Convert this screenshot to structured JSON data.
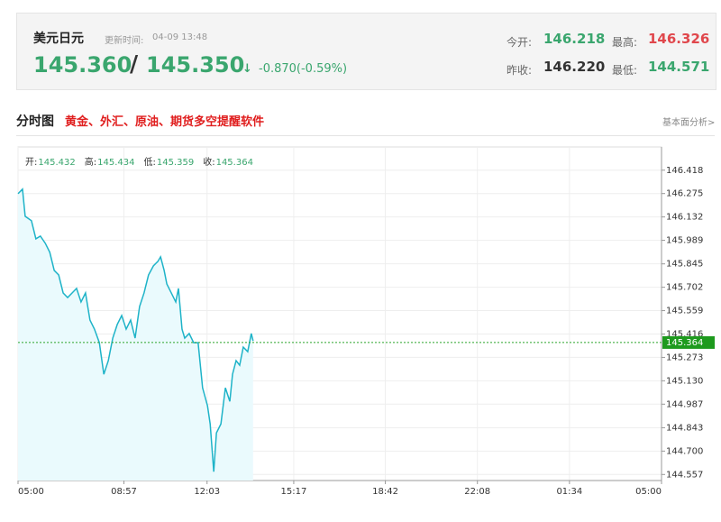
{
  "header": {
    "symbol": "美元日元",
    "update_label": "更新时间:",
    "update_time": "04-09 13:48",
    "bid": "145.360",
    "separator": "/",
    "ask": "145.350",
    "arrow": "↓",
    "change": "-0.870(-0.59%)",
    "stats": [
      {
        "label": "今开:",
        "value": "146.218"
      },
      {
        "label": "最高:",
        "value": "146.326"
      },
      {
        "label": "昨收:",
        "value": "146.220"
      },
      {
        "label": "最低:",
        "value": "144.571"
      }
    ]
  },
  "section": {
    "title": "分时图",
    "promo": "黄金、外汇、原油、期货多空提醒软件",
    "link": "基本面分析>"
  },
  "chart_data": {
    "type": "line",
    "ohlc": [
      {
        "label": "开:",
        "value": 145.432
      },
      {
        "label": "高:",
        "value": 145.434
      },
      {
        "label": "低:",
        "value": 145.359
      },
      {
        "label": "收:",
        "value": 145.364
      }
    ],
    "current_value": 145.364,
    "x": [
      0,
      10,
      16,
      30,
      40,
      50,
      61,
      71,
      81,
      91,
      101,
      111,
      121,
      131,
      141,
      151,
      161,
      171,
      182,
      192,
      202,
      212,
      222,
      232,
      242,
      252,
      262,
      272,
      282,
      292,
      303,
      313,
      319,
      327,
      333,
      343,
      353,
      359,
      367,
      373,
      383,
      393,
      403,
      413,
      424,
      430,
      438,
      444,
      454,
      464,
      474,
      480,
      488,
      496,
      504,
      514,
      522,
      526
    ],
    "series": [
      {
        "name": "USDJPY",
        "color": "#1eb3c8",
        "values": [
          146.274,
          146.302,
          146.136,
          146.109,
          145.998,
          146.015,
          145.971,
          145.916,
          145.805,
          145.777,
          145.667,
          145.639,
          145.667,
          145.695,
          145.612,
          145.667,
          145.501,
          145.446,
          145.363,
          145.17,
          145.253,
          145.391,
          145.474,
          145.529,
          145.446,
          145.501,
          145.391,
          145.584,
          145.667,
          145.777,
          145.833,
          145.86,
          145.888,
          145.805,
          145.722,
          145.667,
          145.612,
          145.695,
          145.446,
          145.391,
          145.419,
          145.363,
          145.363,
          145.087,
          144.977,
          144.866,
          144.574,
          144.811,
          144.866,
          145.087,
          145.004,
          145.17,
          145.253,
          145.225,
          145.336,
          145.308,
          145.419,
          145.374
        ]
      }
    ],
    "xlim": [
      0,
      1440
    ],
    "xticks": [
      {
        "value": 0,
        "label": "05:00"
      },
      {
        "value": 237,
        "label": "08:57"
      },
      {
        "value": 423,
        "label": "12:03"
      },
      {
        "value": 617,
        "label": "15:17"
      },
      {
        "value": 822,
        "label": "18:42"
      },
      {
        "value": 1028,
        "label": "22:08"
      },
      {
        "value": 1234,
        "label": "01:34"
      },
      {
        "value": 1440,
        "label": "05:00"
      }
    ],
    "ylim": [
      144.52,
      146.56
    ],
    "yticks": [
      146.418,
      146.275,
      146.132,
      145.989,
      145.845,
      145.702,
      145.559,
      145.416,
      145.273,
      {
        "value": 145.13,
        "label": "145.130"
      },
      144.987,
      144.843,
      {
        "value": 144.7,
        "label": "144.700"
      },
      144.557
    ],
    "grid": true
  }
}
